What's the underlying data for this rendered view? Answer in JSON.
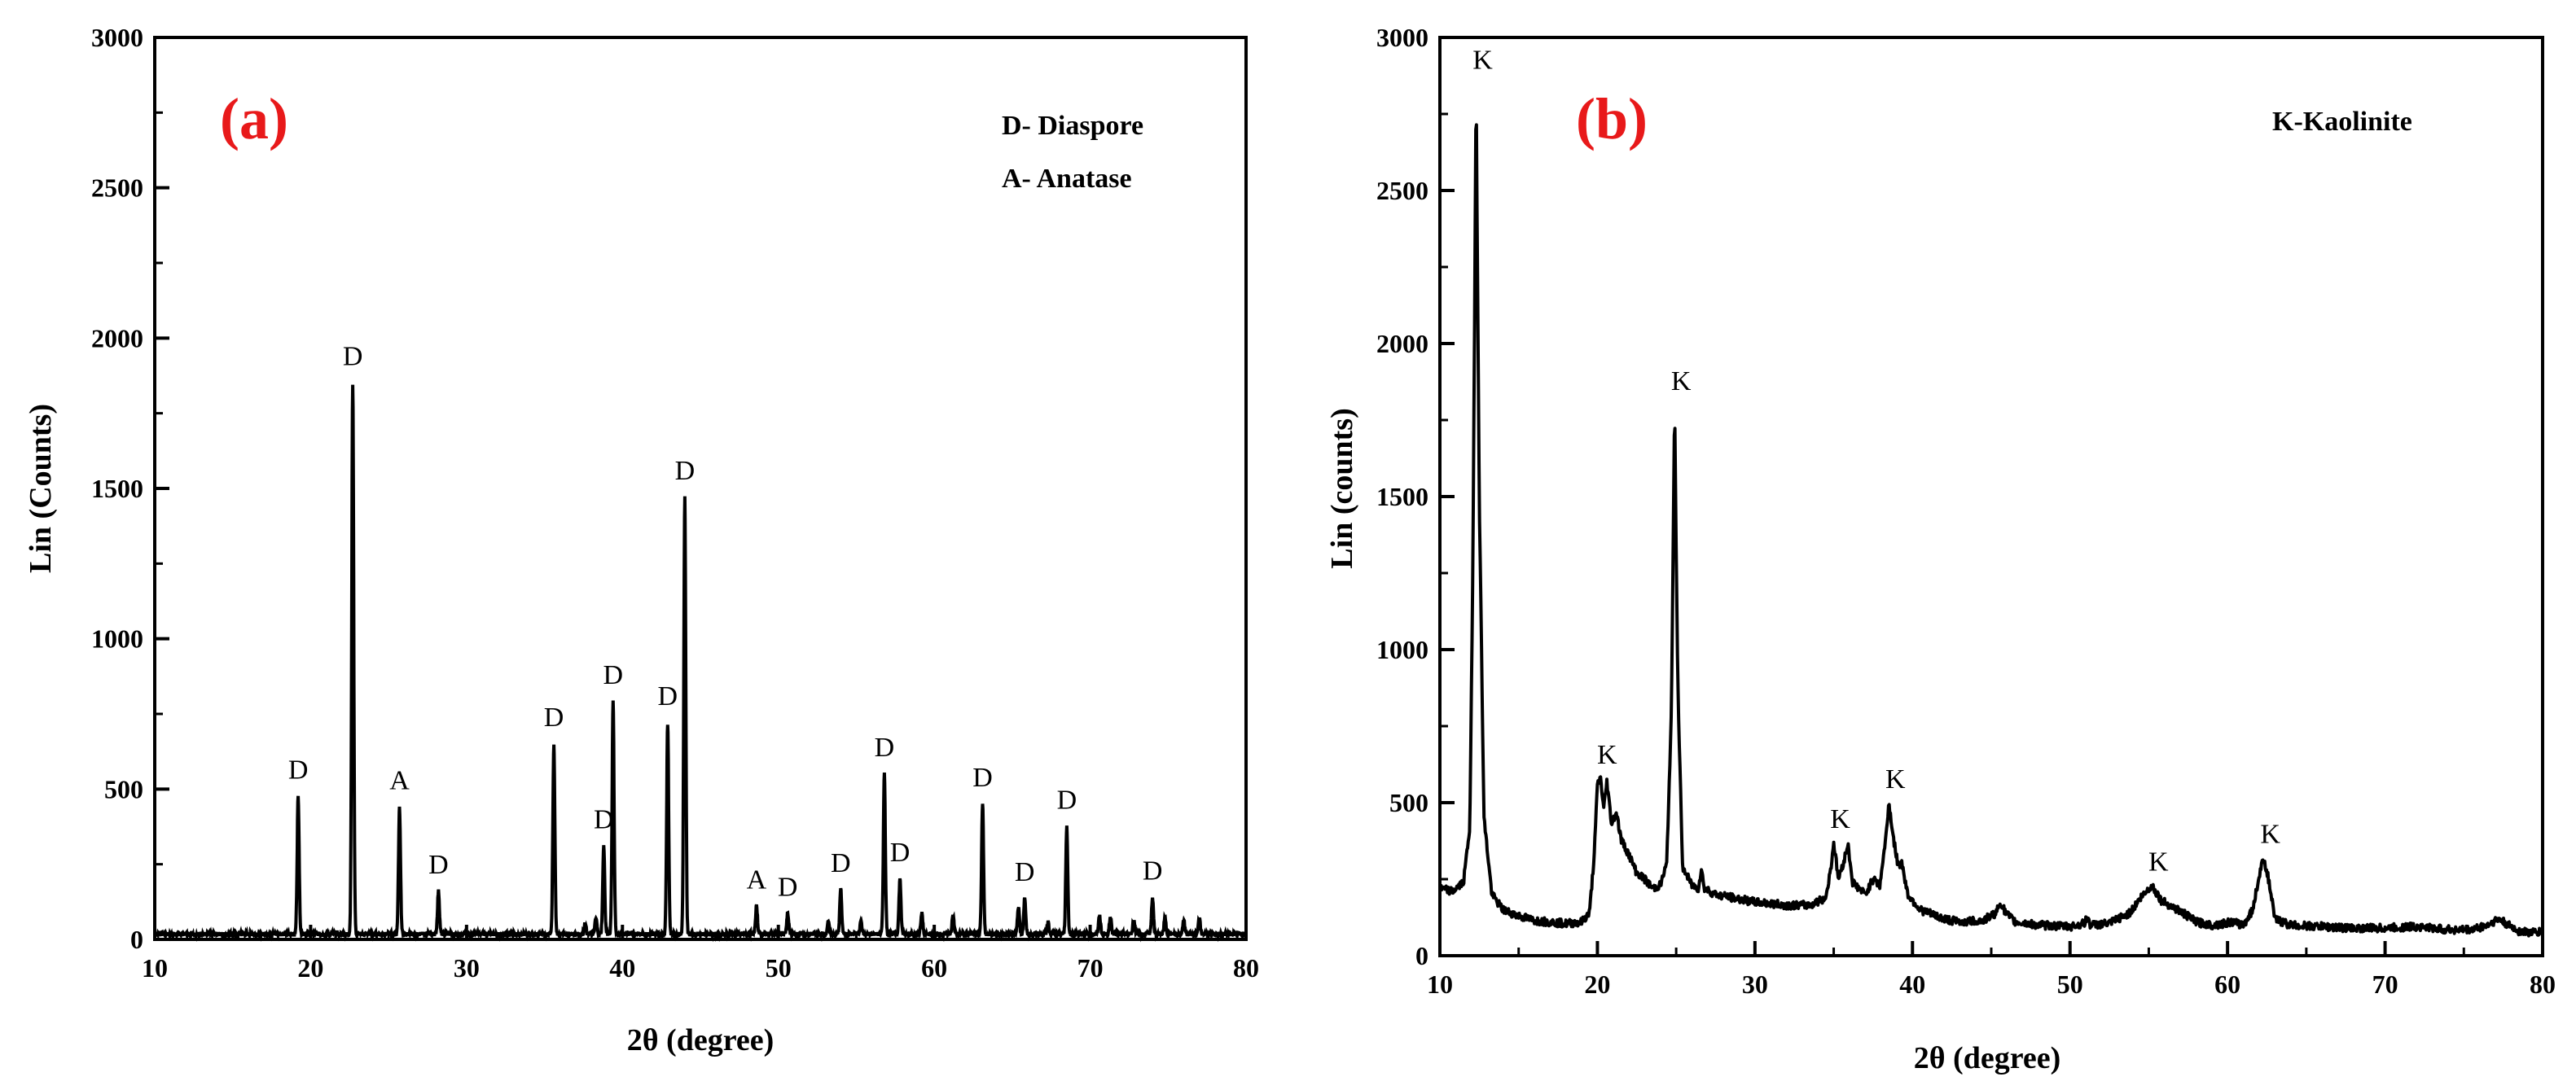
{
  "chart_data": [
    {
      "type": "line",
      "panel_label": "(a)",
      "xlabel": "2θ (degree)",
      "ylabel": "Lin (Counts)",
      "xlim": [
        10,
        80
      ],
      "ylim": [
        0,
        3000
      ],
      "xticks": [
        10,
        20,
        30,
        40,
        50,
        60,
        70,
        80
      ],
      "yticks": [
        0,
        500,
        1000,
        1500,
        2000,
        2500,
        3000
      ],
      "legend": [
        "D- Diaspore",
        "A- Anatase"
      ],
      "baseline": 18,
      "peaks": [
        {
          "x": 19.2,
          "y": 475,
          "label": "D"
        },
        {
          "x": 22.7,
          "y": 1850,
          "label": "D"
        },
        {
          "x": 25.7,
          "y": 440,
          "label": "A"
        },
        {
          "x": 28.2,
          "y": 160,
          "label": "D"
        },
        {
          "x": 35.6,
          "y": 650,
          "label": "D"
        },
        {
          "x": 38.8,
          "y": 310,
          "label": "D"
        },
        {
          "x": 39.4,
          "y": 790,
          "label": "D"
        },
        {
          "x": 42.9,
          "y": 720,
          "label": "D"
        },
        {
          "x": 44.0,
          "y": 1470,
          "label": "D"
        },
        {
          "x": 48.6,
          "y": 110,
          "label": "A"
        },
        {
          "x": 50.6,
          "y": 85,
          "label": "D"
        },
        {
          "x": 54.0,
          "y": 165,
          "label": "D"
        },
        {
          "x": 56.8,
          "y": 550,
          "label": "D"
        },
        {
          "x": 57.8,
          "y": 200,
          "label": "D"
        },
        {
          "x": 63.1,
          "y": 450,
          "label": "D"
        },
        {
          "x": 65.8,
          "y": 135,
          "label": "D"
        },
        {
          "x": 68.5,
          "y": 375,
          "label": "D"
        },
        {
          "x": 74.0,
          "y": 140,
          "label": "D"
        }
      ],
      "minor_peaks": [
        {
          "x": 37.6,
          "y": 55
        },
        {
          "x": 38.3,
          "y": 70
        },
        {
          "x": 53.2,
          "y": 55
        },
        {
          "x": 55.3,
          "y": 60
        },
        {
          "x": 59.2,
          "y": 85
        },
        {
          "x": 61.2,
          "y": 80
        },
        {
          "x": 65.4,
          "y": 110
        },
        {
          "x": 67.3,
          "y": 60
        },
        {
          "x": 70.6,
          "y": 80
        },
        {
          "x": 71.3,
          "y": 75
        },
        {
          "x": 72.8,
          "y": 65
        },
        {
          "x": 74.8,
          "y": 70
        },
        {
          "x": 76.0,
          "y": 65
        },
        {
          "x": 77.0,
          "y": 70
        }
      ]
    },
    {
      "type": "line",
      "panel_label": "(b)",
      "xlabel": "2θ (degree)",
      "ylabel": "Lin (counts)",
      "xlim": [
        10,
        80
      ],
      "ylim": [
        0,
        3000
      ],
      "xticks": [
        10,
        20,
        30,
        40,
        50,
        60,
        70,
        80
      ],
      "yticks": [
        0,
        500,
        1000,
        1500,
        2000,
        2500,
        3000
      ],
      "legend": [
        "K-Kaolinite"
      ],
      "peak_labels": [
        {
          "x": 12.3,
          "y": 2850,
          "label": "K"
        },
        {
          "x": 20.2,
          "y": 580,
          "label": "K"
        },
        {
          "x": 24.9,
          "y": 1800,
          "label": "K"
        },
        {
          "x": 35.0,
          "y": 370,
          "label": "K"
        },
        {
          "x": 38.5,
          "y": 500,
          "label": "K"
        },
        {
          "x": 55.2,
          "y": 230,
          "label": "K"
        },
        {
          "x": 62.3,
          "y": 320,
          "label": "K"
        }
      ],
      "profile": [
        [
          10,
          220
        ],
        [
          10.8,
          210
        ],
        [
          11.5,
          240
        ],
        [
          11.9,
          420
        ],
        [
          12.1,
          1300
        ],
        [
          12.3,
          2850
        ],
        [
          12.5,
          1500
        ],
        [
          12.8,
          450
        ],
        [
          13.3,
          200
        ],
        [
          14,
          150
        ],
        [
          15,
          130
        ],
        [
          16,
          115
        ],
        [
          17,
          110
        ],
        [
          18,
          105
        ],
        [
          19,
          110
        ],
        [
          19.5,
          140
        ],
        [
          19.8,
          330
        ],
        [
          20.0,
          560
        ],
        [
          20.2,
          580
        ],
        [
          20.4,
          480
        ],
        [
          20.6,
          570
        ],
        [
          20.9,
          430
        ],
        [
          21.2,
          470
        ],
        [
          21.5,
          380
        ],
        [
          22.0,
          330
        ],
        [
          22.5,
          270
        ],
        [
          23.0,
          250
        ],
        [
          23.5,
          220
        ],
        [
          24.0,
          230
        ],
        [
          24.4,
          300
        ],
        [
          24.7,
          800
        ],
        [
          24.9,
          1800
        ],
        [
          25.1,
          900
        ],
        [
          25.4,
          290
        ],
        [
          26.0,
          230
        ],
        [
          26.4,
          220
        ],
        [
          26.6,
          280
        ],
        [
          26.8,
          220
        ],
        [
          27.5,
          200
        ],
        [
          28.5,
          190
        ],
        [
          30,
          175
        ],
        [
          32,
          165
        ],
        [
          33.5,
          165
        ],
        [
          34.5,
          190
        ],
        [
          34.8,
          280
        ],
        [
          35.0,
          370
        ],
        [
          35.3,
          250
        ],
        [
          35.7,
          320
        ],
        [
          35.9,
          365
        ],
        [
          36.2,
          240
        ],
        [
          37.0,
          200
        ],
        [
          37.6,
          260
        ],
        [
          37.9,
          220
        ],
        [
          38.3,
          380
        ],
        [
          38.5,
          500
        ],
        [
          38.8,
          380
        ],
        [
          39.1,
          290
        ],
        [
          39.3,
          310
        ],
        [
          39.7,
          200
        ],
        [
          40.5,
          150
        ],
        [
          42,
          120
        ],
        [
          43,
          110
        ],
        [
          44.5,
          115
        ],
        [
          45.3,
          140
        ],
        [
          45.6,
          175
        ],
        [
          45.9,
          140
        ],
        [
          46.5,
          110
        ],
        [
          48,
          100
        ],
        [
          50,
          95
        ],
        [
          50.9,
          105
        ],
        [
          51.1,
          125
        ],
        [
          51.3,
          100
        ],
        [
          52.5,
          105
        ],
        [
          53.8,
          140
        ],
        [
          54.5,
          190
        ],
        [
          55.2,
          230
        ],
        [
          55.8,
          180
        ],
        [
          56.5,
          160
        ],
        [
          57.3,
          135
        ],
        [
          58,
          110
        ],
        [
          59,
          100
        ],
        [
          59.8,
          105
        ],
        [
          60.2,
          110
        ],
        [
          61,
          100
        ],
        [
          61.6,
          150
        ],
        [
          62.0,
          260
        ],
        [
          62.3,
          320
        ],
        [
          62.6,
          250
        ],
        [
          63.0,
          120
        ],
        [
          64,
          100
        ],
        [
          66,
          95
        ],
        [
          68,
          90
        ],
        [
          70,
          90
        ],
        [
          72,
          95
        ],
        [
          74,
          85
        ],
        [
          75.5,
          85
        ],
        [
          76.5,
          100
        ],
        [
          77.2,
          120
        ],
        [
          77.8,
          100
        ],
        [
          78.5,
          80
        ],
        [
          79.5,
          75
        ],
        [
          80,
          80
        ]
      ]
    }
  ]
}
